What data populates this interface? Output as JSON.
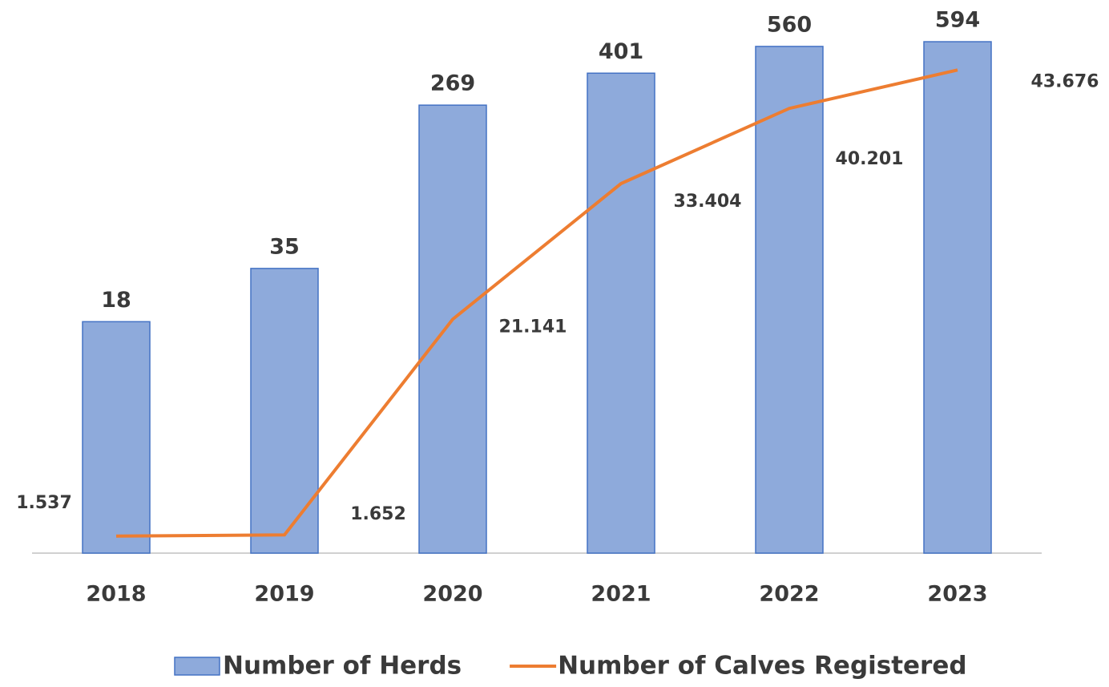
{
  "chart_data": {
    "type": "bar_line",
    "categories": [
      "2018",
      "2019",
      "2020",
      "2021",
      "2022",
      "2023"
    ],
    "series": [
      {
        "name": "Number of Herds",
        "type": "bar",
        "color": "#8eaadb",
        "values": [
          18,
          35,
          269,
          401,
          560,
          594
        ]
      },
      {
        "name": "Number of Calves Registered",
        "type": "line",
        "axis": "y2",
        "color": "#ed7d31",
        "values": [
          1537,
          1652,
          21141,
          33404,
          40201,
          43676
        ],
        "value_labels": [
          "1.537",
          "1.652",
          "21.141",
          "33.404",
          "40.201",
          "43.676"
        ]
      }
    ],
    "ylim": [
      1,
      1000
    ],
    "yscale": "log",
    "y2lim": [
      0,
      50000
    ],
    "legend": "bottom"
  }
}
